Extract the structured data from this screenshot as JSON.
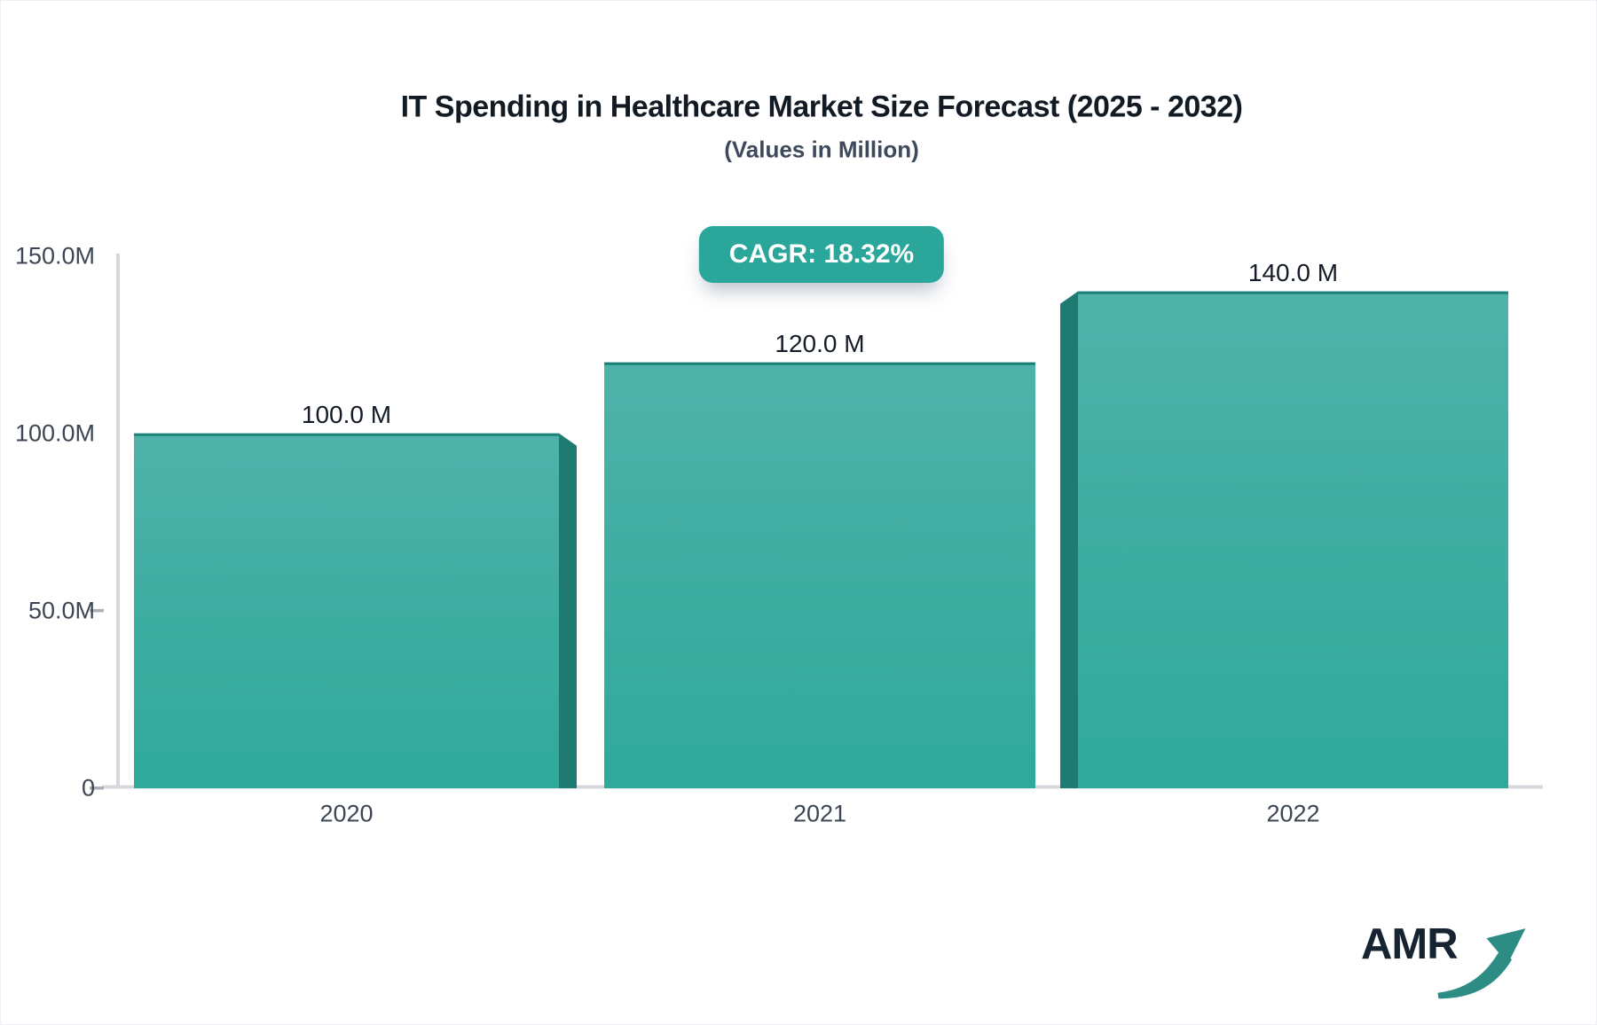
{
  "page": {
    "title": "IT Spending in Healthcare Market Size Forecast (2025 - 2032)",
    "subtitle": "(Values in Million)",
    "cagr_badge": "CAGR: 18.32%",
    "logo_text": "AMR"
  },
  "chart_data": {
    "type": "bar",
    "title": "IT Spending in Healthcare Market Size Forecast (2025 - 2032)",
    "subtitle": "(Values in Million)",
    "categories": [
      "2020",
      "2021",
      "2022"
    ],
    "values": [
      100,
      120,
      140
    ],
    "value_labels": [
      "100.0 M",
      "120.0 M",
      "140.0 M"
    ],
    "unit": "Million",
    "cagr_label": "CAGR: 18.32%",
    "cagr_percent": 18.32,
    "ylim": [
      0,
      150
    ],
    "yticks": [
      "150.0M",
      "100.0M",
      "50.0M",
      "0"
    ],
    "ytick_values": [
      150,
      100,
      50,
      0
    ],
    "xlabel": "",
    "ylabel": "",
    "grid": false,
    "legend": false,
    "colors": {
      "bar_top": "#4fb2a9",
      "bar_bottom": "#2fa99a",
      "bar_top_edge": "#1d8076",
      "bar_side": "#1d7b72",
      "badge": "#2aa69a",
      "axis_line": "#d5d8dd",
      "tick_dash": "#a9aeb7",
      "logo_arrow": "#2d8d84"
    }
  }
}
